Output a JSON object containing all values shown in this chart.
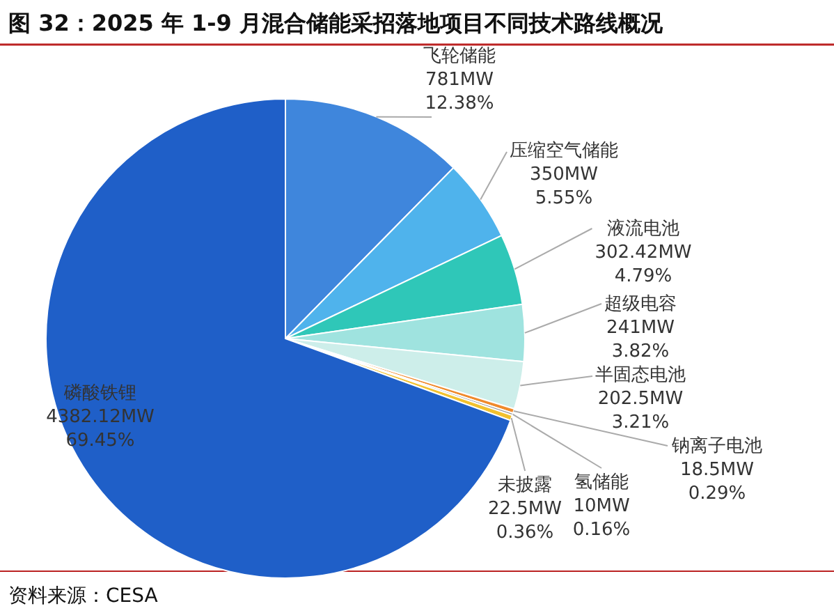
{
  "chart_data": {
    "type": "pie",
    "title": "图 32：2025 年 1-9 月混合储能采招落地项目不同技术路线概况",
    "categories": [
      "飞轮储能",
      "压缩空气储能",
      "液流电池",
      "超级电容",
      "半固态电池",
      "钠离子电池",
      "氢储能",
      "未披露",
      "磷酸铁锂"
    ],
    "values": [
      781,
      350,
      302.42,
      241,
      202.5,
      18.5,
      10,
      22.5,
      4382.12
    ],
    "value_labels": [
      "781MW\n12.38%",
      "350MW\n5.55%",
      "302.42MW\n4.79%",
      "241MW\n3.82%",
      "202.5MW\n3.21%",
      "18.5MW\n0.29%",
      "10MW\n0.16%",
      "22.5MW\n0.36%",
      "4382.12MW\n69.45%"
    ],
    "colors": [
      "#3f86dc",
      "#4fb3ec",
      "#2fc7b8",
      "#9fe3df",
      "#cdeeea",
      "#f08a2c",
      "#9a9a9a",
      "#f2c12e",
      "#1f5fc8"
    ],
    "annotations": [
      "资料来源：CESA"
    ]
  }
}
